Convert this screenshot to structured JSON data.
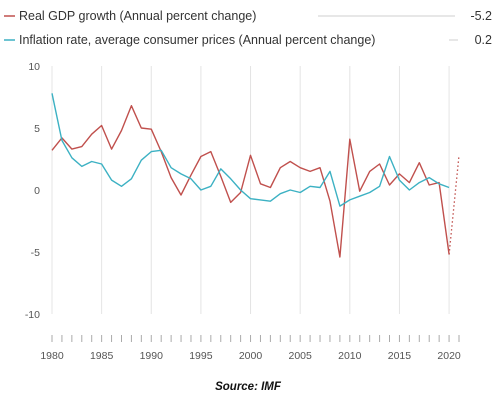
{
  "chart_data": {
    "type": "line",
    "x": [
      1980,
      1981,
      1982,
      1983,
      1984,
      1985,
      1986,
      1987,
      1988,
      1989,
      1990,
      1991,
      1992,
      1993,
      1994,
      1995,
      1996,
      1997,
      1998,
      1999,
      2000,
      2001,
      2002,
      2003,
      2004,
      2005,
      2006,
      2007,
      2008,
      2009,
      2010,
      2011,
      2012,
      2013,
      2014,
      2015,
      2016,
      2017,
      2018,
      2019,
      2020
    ],
    "xticks": [
      "1980",
      "1985",
      "1990",
      "1995",
      "2000",
      "2005",
      "2010",
      "2015",
      "2020"
    ],
    "yticks": [
      "10",
      "5",
      "0",
      "-5",
      "-10"
    ],
    "ylim": [
      -10,
      10
    ],
    "xlim": [
      1980,
      2021
    ],
    "series": [
      {
        "name": "Real GDP growth (Annual percent change)",
        "legend_value": "-5.2",
        "color": "#c0504d",
        "values": [
          3.2,
          4.2,
          3.3,
          3.5,
          4.5,
          5.2,
          3.3,
          4.8,
          6.8,
          5.0,
          4.9,
          3.1,
          1.0,
          -0.4,
          1.2,
          2.7,
          3.1,
          1.1,
          -1.0,
          -0.2,
          2.8,
          0.5,
          0.2,
          1.8,
          2.3,
          1.8,
          1.5,
          1.8,
          -0.9,
          -5.4,
          4.1,
          -0.1,
          1.5,
          2.1,
          0.4,
          1.3,
          0.6,
          2.2,
          0.4,
          0.6,
          -5.2
        ],
        "projection": [
          [
            2020,
            -5.2
          ],
          [
            2021,
            2.8
          ]
        ]
      },
      {
        "name": "Inflation rate, average consumer prices (Annual percent change)",
        "legend_value": "0.2",
        "color": "#3cb1c3",
        "values": [
          7.8,
          4.0,
          2.6,
          1.9,
          2.3,
          2.1,
          0.8,
          0.3,
          0.9,
          2.4,
          3.1,
          3.2,
          1.8,
          1.3,
          0.9,
          0.0,
          0.3,
          1.7,
          0.9,
          0.0,
          -0.7,
          -0.8,
          -0.9,
          -0.3,
          0.0,
          -0.2,
          0.3,
          0.2,
          1.5,
          -1.3,
          -0.8,
          -0.5,
          -0.2,
          0.3,
          2.7,
          0.8,
          0.0,
          0.6,
          1.0,
          0.5,
          0.2
        ],
        "projection": []
      }
    ]
  },
  "source_label": "Source: IMF"
}
